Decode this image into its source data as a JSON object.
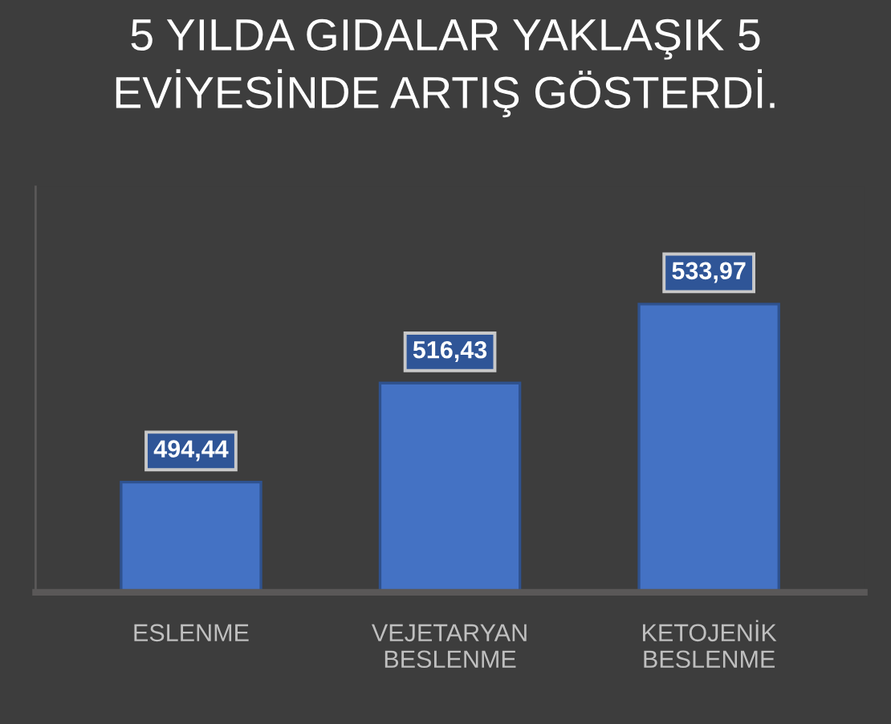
{
  "chart_data": {
    "type": "bar",
    "title": "5 YILDA GIDALAR YAKLAŞIK 5\nEVİYESİNDE ARTIŞ GÖSTERDİ.",
    "categories": [
      "ESLENME",
      "VEJETARYAN BESLENME",
      "KETOJENİK BESLENME"
    ],
    "values": [
      494.44,
      516.43,
      533.97
    ],
    "value_labels": [
      "494,44",
      "516,43",
      "533,97"
    ],
    "color": "#4472c4",
    "ylim": [
      470,
      560
    ],
    "tick_labels": "x",
    "grid": false
  }
}
